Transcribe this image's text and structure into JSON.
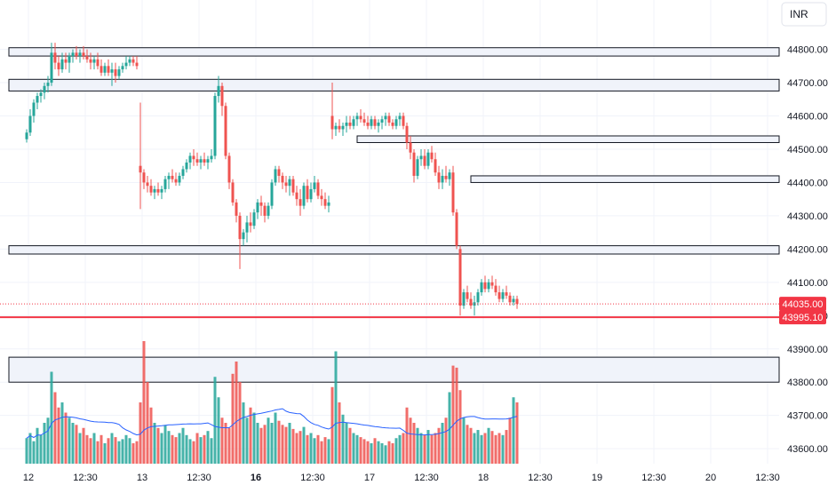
{
  "currency_button": {
    "label": "INR"
  },
  "price_tags": {
    "last": "44035.00",
    "level": "43995.10"
  },
  "colors": {
    "up": "#26a69a",
    "down": "#ef5350",
    "vol_up": "#26a69a",
    "vol_down": "#ef5350",
    "grid": "#f0f3fa",
    "zone_fill": "#f0f3fa",
    "zone_stroke": "#131722",
    "avg_line": "#2962ff",
    "level_line": "#f23645"
  },
  "chart_data": {
    "type": "candlestick",
    "title": "",
    "xlabel": "",
    "ylabel": "",
    "ylim": [
      43555,
      44895
    ],
    "y_ticks": [
      43600,
      43700,
      43800,
      43900,
      44000,
      44100,
      44200,
      44300,
      44400,
      44500,
      44600,
      44700,
      44800
    ],
    "y_tick_labels": [
      "43600.00",
      "43700.00",
      "43800.00",
      "43900.00",
      "44000.00",
      "44100.00",
      "44200.00",
      "44300.00",
      "44400.00",
      "44500.00",
      "44600.00",
      "44700.00",
      "44800.00"
    ],
    "x_tick_labels": [
      {
        "i": 0.5,
        "label": "12",
        "bold": false
      },
      {
        "i": 16.5,
        "label": "12:30",
        "bold": false
      },
      {
        "i": 32.5,
        "label": "13",
        "bold": false
      },
      {
        "i": 48.5,
        "label": "12:30",
        "bold": false
      },
      {
        "i": 64.5,
        "label": "16",
        "bold": true
      },
      {
        "i": 80.5,
        "label": "12:30",
        "bold": false
      },
      {
        "i": 96.5,
        "label": "17",
        "bold": false
      },
      {
        "i": 112.5,
        "label": "12:30",
        "bold": false
      },
      {
        "i": 128.5,
        "label": "18",
        "bold": false
      },
      {
        "i": 144.5,
        "label": "12:30",
        "bold": false
      },
      {
        "i": 160.5,
        "label": "19",
        "bold": false
      },
      {
        "i": 176.5,
        "label": "12:30",
        "bold": false
      },
      {
        "i": 192.5,
        "label": "20",
        "bold": false
      },
      {
        "i": 208.5,
        "label": "12:30",
        "bold": false
      }
    ],
    "last_price": 44035.0,
    "level_price": 43995.1,
    "zones": [
      {
        "low": 44780,
        "high": 44805,
        "from": -5,
        "to": 215
      },
      {
        "low": 44675,
        "high": 44710,
        "from": -5,
        "to": 215
      },
      {
        "low": 44520,
        "high": 44540,
        "from": 93,
        "to": 215
      },
      {
        "low": 44400,
        "high": 44420,
        "from": 125,
        "to": 215
      },
      {
        "low": 44185,
        "high": 44210,
        "from": -5,
        "to": 215
      },
      {
        "low": 43800,
        "high": 43875,
        "from": -5,
        "to": 215
      }
    ],
    "vol_scale": 1.15,
    "candles": [
      [
        44530,
        44560,
        44520,
        44550
      ],
      [
        44550,
        44620,
        44540,
        44600
      ],
      [
        44600,
        44650,
        44580,
        44640
      ],
      [
        44640,
        44670,
        44620,
        44660
      ],
      [
        44660,
        44680,
        44640,
        44670
      ],
      [
        44670,
        44700,
        44650,
        44690
      ],
      [
        44690,
        44720,
        44670,
        44700
      ],
      [
        44700,
        44820,
        44690,
        44790
      ],
      [
        44790,
        44820,
        44740,
        44760
      ],
      [
        44760,
        44780,
        44720,
        44740
      ],
      [
        44740,
        44790,
        44730,
        44770
      ],
      [
        44770,
        44790,
        44740,
        44760
      ],
      [
        44760,
        44790,
        44730,
        44780
      ],
      [
        44780,
        44800,
        44760,
        44790
      ],
      [
        44790,
        44810,
        44770,
        44780
      ],
      [
        44780,
        44800,
        44760,
        44790
      ],
      [
        44790,
        44810,
        44770,
        44780
      ],
      [
        44780,
        44800,
        44760,
        44770
      ],
      [
        44770,
        44790,
        44740,
        44760
      ],
      [
        44760,
        44780,
        44740,
        44770
      ],
      [
        44770,
        44790,
        44740,
        44750
      ],
      [
        44750,
        44770,
        44720,
        44730
      ],
      [
        44730,
        44760,
        44720,
        44750
      ],
      [
        44750,
        44770,
        44720,
        44730
      ],
      [
        44730,
        44760,
        44690,
        44740
      ],
      [
        44740,
        44760,
        44700,
        44720
      ],
      [
        44720,
        44750,
        44710,
        44740
      ],
      [
        44740,
        44760,
        44730,
        44750
      ],
      [
        44750,
        44780,
        44740,
        44760
      ],
      [
        44760,
        44780,
        44750,
        44770
      ],
      [
        44770,
        44780,
        44750,
        44760
      ],
      [
        44760,
        44780,
        44740,
        44750
      ],
      [
        44450,
        44640,
        44320,
        44430
      ],
      [
        44430,
        44440,
        44380,
        44400
      ],
      [
        44400,
        44420,
        44370,
        44390
      ],
      [
        44390,
        44410,
        44360,
        44370
      ],
      [
        44370,
        44390,
        44350,
        44380
      ],
      [
        44380,
        44400,
        44360,
        44370
      ],
      [
        44370,
        44390,
        44350,
        44380
      ],
      [
        44380,
        44420,
        44370,
        44410
      ],
      [
        44410,
        44430,
        44380,
        44420
      ],
      [
        44420,
        44440,
        44400,
        44410
      ],
      [
        44410,
        44430,
        44390,
        44400
      ],
      [
        44400,
        44430,
        44390,
        44420
      ],
      [
        44420,
        44450,
        44410,
        44440
      ],
      [
        44440,
        44470,
        44430,
        44460
      ],
      [
        44460,
        44490,
        44440,
        44480
      ],
      [
        44480,
        44500,
        44450,
        44470
      ],
      [
        44470,
        44490,
        44450,
        44460
      ],
      [
        44460,
        44480,
        44440,
        44470
      ],
      [
        44470,
        44490,
        44450,
        44460
      ],
      [
        44460,
        44480,
        44440,
        44470
      ],
      [
        44470,
        44500,
        44460,
        44480
      ],
      [
        44480,
        44670,
        44470,
        44660
      ],
      [
        44660,
        44720,
        44640,
        44690
      ],
      [
        44690,
        44700,
        44600,
        44630
      ],
      [
        44630,
        44640,
        44470,
        44480
      ],
      [
        44480,
        44490,
        44380,
        44400
      ],
      [
        44400,
        44410,
        44330,
        44340
      ],
      [
        44340,
        44350,
        44280,
        44300
      ],
      [
        44300,
        44310,
        44140,
        44230
      ],
      [
        44230,
        44260,
        44210,
        44250
      ],
      [
        44250,
        44300,
        44220,
        44280
      ],
      [
        44280,
        44310,
        44250,
        44270
      ],
      [
        44270,
        44320,
        44260,
        44310
      ],
      [
        44310,
        44350,
        44290,
        44340
      ],
      [
        44340,
        44360,
        44300,
        44330
      ],
      [
        44330,
        44340,
        44280,
        44300
      ],
      [
        44300,
        44340,
        44290,
        44330
      ],
      [
        44330,
        44410,
        44320,
        44400
      ],
      [
        44400,
        44450,
        44390,
        44440
      ],
      [
        44440,
        44450,
        44400,
        44420
      ],
      [
        44420,
        44430,
        44380,
        44400
      ],
      [
        44400,
        44420,
        44370,
        44390
      ],
      [
        44390,
        44420,
        44360,
        44410
      ],
      [
        44410,
        44420,
        44360,
        44370
      ],
      [
        44370,
        44390,
        44330,
        44350
      ],
      [
        44350,
        44380,
        44300,
        44330
      ],
      [
        44330,
        44400,
        44320,
        44390
      ],
      [
        44390,
        44410,
        44340,
        44350
      ],
      [
        44350,
        44400,
        44340,
        44380
      ],
      [
        44380,
        44420,
        44370,
        44400
      ],
      [
        44400,
        44410,
        44350,
        44360
      ],
      [
        44360,
        44380,
        44330,
        44350
      ],
      [
        44350,
        44370,
        44320,
        44330
      ],
      [
        44330,
        44360,
        44310,
        44340
      ],
      [
        44600,
        44700,
        44530,
        44560
      ],
      [
        44560,
        44580,
        44540,
        44570
      ],
      [
        44570,
        44590,
        44550,
        44560
      ],
      [
        44560,
        44580,
        44540,
        44570
      ],
      [
        44570,
        44600,
        44550,
        44580
      ],
      [
        44580,
        44600,
        44560,
        44570
      ],
      [
        44570,
        44600,
        44560,
        44590
      ],
      [
        44590,
        44610,
        44570,
        44600
      ],
      [
        44600,
        44620,
        44580,
        44590
      ],
      [
        44590,
        44610,
        44570,
        44580
      ],
      [
        44580,
        44600,
        44560,
        44570
      ],
      [
        44570,
        44600,
        44560,
        44590
      ],
      [
        44590,
        44600,
        44560,
        44570
      ],
      [
        44570,
        44590,
        44550,
        44580
      ],
      [
        44580,
        44600,
        44560,
        44590
      ],
      [
        44590,
        44610,
        44570,
        44600
      ],
      [
        44600,
        44610,
        44570,
        44580
      ],
      [
        44580,
        44590,
        44560,
        44570
      ],
      [
        44570,
        44600,
        44560,
        44590
      ],
      [
        44590,
        44610,
        44570,
        44600
      ],
      [
        44600,
        44610,
        44560,
        44570
      ],
      [
        44570,
        44580,
        44500,
        44520
      ],
      [
        44520,
        44540,
        44470,
        44490
      ],
      [
        44490,
        44500,
        44400,
        44420
      ],
      [
        44420,
        44480,
        44410,
        44470
      ],
      [
        44470,
        44500,
        44450,
        44480
      ],
      [
        44480,
        44500,
        44440,
        44450
      ],
      [
        44450,
        44500,
        44440,
        44490
      ],
      [
        44490,
        44510,
        44460,
        44470
      ],
      [
        44470,
        44490,
        44420,
        44430
      ],
      [
        44430,
        44450,
        44380,
        44400
      ],
      [
        44400,
        44440,
        44380,
        44420
      ],
      [
        44420,
        44450,
        44400,
        44410
      ],
      [
        44410,
        44440,
        44390,
        44430
      ],
      [
        44430,
        44450,
        44300,
        44310
      ],
      [
        44310,
        44320,
        44200,
        44210
      ],
      [
        44200,
        44210,
        44000,
        44030
      ],
      [
        44030,
        44080,
        44020,
        44070
      ],
      [
        44070,
        44090,
        44040,
        44050
      ],
      [
        44050,
        44070,
        44020,
        44030
      ],
      [
        44030,
        44060,
        44000,
        44040
      ],
      [
        44040,
        44080,
        44030,
        44070
      ],
      [
        44070,
        44110,
        44060,
        44100
      ],
      [
        44100,
        44120,
        44070,
        44080
      ],
      [
        44080,
        44110,
        44070,
        44100
      ],
      [
        44100,
        44120,
        44080,
        44090
      ],
      [
        44090,
        44110,
        44060,
        44070
      ],
      [
        44070,
        44090,
        44040,
        44050
      ],
      [
        44050,
        44080,
        44040,
        44070
      ],
      [
        44070,
        44090,
        44050,
        44060
      ],
      [
        44060,
        44070,
        44030,
        44040
      ],
      [
        44040,
        44060,
        44030,
        44050
      ],
      [
        44050,
        44060,
        44020,
        44035
      ]
    ],
    "volumes": [
      25,
      30,
      22,
      35,
      28,
      40,
      45,
      90,
      70,
      55,
      60,
      50,
      45,
      40,
      38,
      30,
      35,
      28,
      25,
      30,
      22,
      28,
      20,
      25,
      30,
      26,
      22,
      24,
      28,
      25,
      20,
      22,
      60,
      120,
      80,
      55,
      40,
      35,
      30,
      38,
      32,
      28,
      26,
      30,
      35,
      28,
      24,
      22,
      30,
      26,
      28,
      32,
      25,
      85,
      65,
      45,
      40,
      35,
      88,
      100,
      80,
      60,
      45,
      55,
      50,
      40,
      35,
      38,
      45,
      40,
      50,
      42,
      38,
      36,
      40,
      34,
      30,
      32,
      36,
      28,
      30,
      25,
      28,
      22,
      26,
      24,
      75,
      110,
      60,
      48,
      40,
      35,
      30,
      28,
      26,
      24,
      22,
      20,
      25,
      22,
      20,
      18,
      22,
      20,
      25,
      28,
      30,
      55,
      45,
      40,
      35,
      30,
      28,
      33,
      28,
      30,
      35,
      40,
      45,
      70,
      96,
      94,
      72,
      45,
      38,
      35,
      30,
      33,
      28,
      30,
      35,
      32,
      28,
      30,
      28,
      33,
      45,
      65,
      60
    ]
  }
}
